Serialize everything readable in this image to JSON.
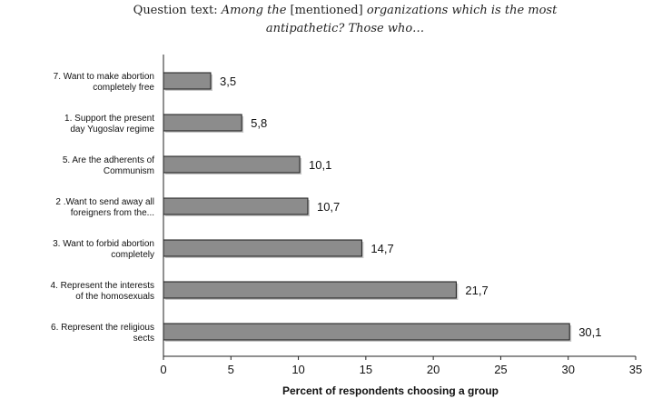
{
  "title": {
    "line1_prefix": "Question text: ",
    "line1_italic_a": "Among the ",
    "line1_bracket": "[mentioned]",
    "line1_italic_b": " organizations which is the most",
    "line2_italic": "antipathetic? Those who…"
  },
  "chart_data": {
    "type": "bar",
    "orientation": "horizontal",
    "categories": [
      [
        "7. Want to make abortion",
        "completely free"
      ],
      [
        "1. Support the present",
        "day Yugoslav regime"
      ],
      [
        "5. Are the adherents of",
        "Communism"
      ],
      [
        "2 .Want to send away all",
        "foreigners from the..."
      ],
      [
        "3. Want to forbid abortion",
        "completely"
      ],
      [
        "4. Represent the interests",
        "of the homosexuals"
      ],
      [
        "6. Represent the religious",
        "sects"
      ]
    ],
    "values": [
      3.5,
      5.8,
      10.1,
      10.7,
      14.7,
      21.7,
      30.1
    ],
    "value_labels": [
      "3,5",
      "5,8",
      "10,1",
      "10,7",
      "14,7",
      "21,7",
      "30,1"
    ],
    "xlabel": "Percent of respondents choosing a group",
    "xlim": [
      0,
      35
    ],
    "xticks": [
      "0",
      "5",
      "10",
      "15",
      "20",
      "25",
      "30",
      "35"
    ],
    "grid": false,
    "bar_color": "#8c8c8c"
  }
}
